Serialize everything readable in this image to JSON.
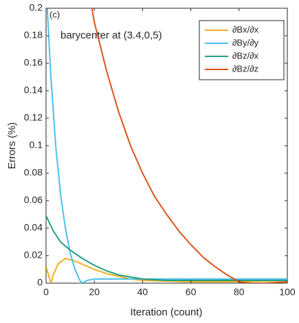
{
  "chart_data": {
    "type": "line",
    "panel_label": "(c)",
    "annotation": "barycenter at (3.4,0,5)",
    "xlabel": "Iteration (count)",
    "ylabel": "Errors (%)",
    "xlim": [
      0,
      100
    ],
    "ylim": [
      0,
      0.2
    ],
    "xticks": [
      0,
      20,
      40,
      60,
      80,
      100
    ],
    "yticks": [
      0,
      0.02,
      0.04,
      0.06,
      0.08,
      0.1,
      0.12,
      0.14,
      0.16,
      0.18,
      0.2
    ],
    "legend": "upper right",
    "series": [
      {
        "name": "∂Bx/∂x",
        "color": "#EDB120",
        "x": [
          0,
          1,
          2,
          3,
          5,
          8,
          12,
          16,
          20,
          25,
          30,
          35,
          40,
          50,
          60,
          80,
          100
        ],
        "values": [
          0.012,
          0.006,
          0.0,
          0.006,
          0.014,
          0.018,
          0.016,
          0.013,
          0.01,
          0.007,
          0.005,
          0.003,
          0.002,
          0.0015,
          0.001,
          0.001,
          0.002
        ]
      },
      {
        "name": "∂By/∂y",
        "color": "#4DBEEE",
        "x": [
          0.5,
          2,
          4,
          6,
          8,
          10,
          12,
          14,
          15,
          17,
          20,
          40,
          100
        ],
        "values": [
          0.2,
          0.15,
          0.1,
          0.065,
          0.04,
          0.022,
          0.01,
          0.002,
          0.0,
          0.002,
          0.003,
          0.003,
          0.003
        ]
      },
      {
        "name": "∂Bz/∂x",
        "color": "#20A080",
        "x": [
          0,
          3,
          6,
          10,
          15,
          20,
          25,
          30,
          40,
          50,
          100
        ],
        "values": [
          0.049,
          0.038,
          0.03,
          0.024,
          0.018,
          0.013,
          0.009,
          0.006,
          0.003,
          0.002,
          0.002
        ]
      },
      {
        "name": "∂Bz/∂z",
        "color": "#D95319",
        "x": [
          19,
          20,
          25,
          30,
          35,
          40,
          45,
          50,
          55,
          60,
          65,
          70,
          75,
          80,
          85,
          90,
          100
        ],
        "values": [
          0.2,
          0.19,
          0.155,
          0.125,
          0.1,
          0.08,
          0.063,
          0.05,
          0.038,
          0.028,
          0.019,
          0.012,
          0.006,
          0.001,
          0.0,
          0.0,
          0.001
        ]
      }
    ]
  }
}
